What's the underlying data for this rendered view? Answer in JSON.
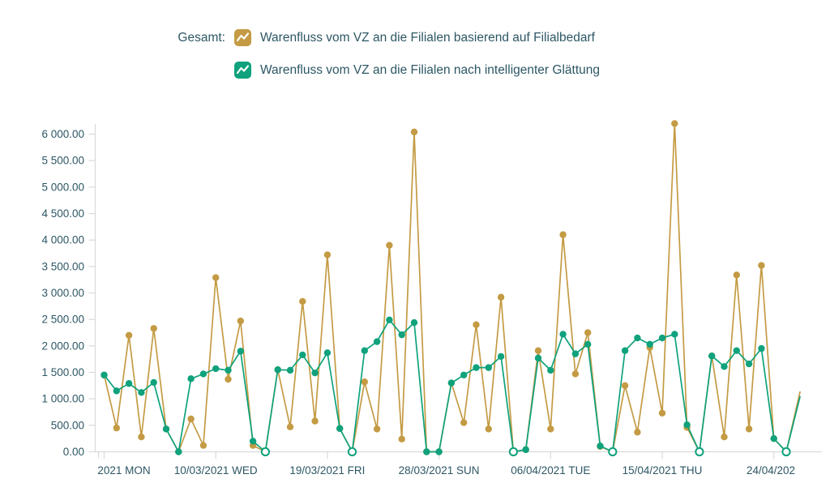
{
  "legend": {
    "prefix": "Gesamt:"
  },
  "chart_data": {
    "type": "line",
    "title": "",
    "xlabel": "",
    "ylabel": "",
    "ylim": [
      0,
      6000
    ],
    "grid": false,
    "legend_position": "top",
    "y_tick_labels": [
      "0.00",
      "500.00",
      "1 000.00",
      "1 500.00",
      "2 000.00",
      "2 500.00",
      "3 000.00",
      "3 500.00",
      "4 000.00",
      "4 500.00",
      "5 000.00",
      "5 500.00",
      "6 000.00"
    ],
    "x_tick_labels": [
      "2021 MON",
      "10/03/2021 WED",
      "19/03/2021 FRI",
      "28/03/2021 SUN",
      "06/04/2021 TUE",
      "15/04/2021 THU",
      "24/04/202"
    ],
    "x_tick_days": [
      0,
      9,
      18,
      27,
      36,
      45,
      54
    ],
    "x_unit": "day",
    "series": [
      {
        "name": "Warenfluss vom VZ an die Filialen basierend auf Filialbedarf",
        "color": "#C49B44",
        "values": [
          1450,
          450,
          2200,
          280,
          2330,
          430,
          0,
          620,
          120,
          3290,
          1370,
          2470,
          120,
          0,
          1550,
          470,
          2840,
          580,
          3720,
          440,
          0,
          1320,
          430,
          3900,
          240,
          6040,
          0,
          0,
          1300,
          550,
          2400,
          430,
          2920,
          0,
          40,
          1910,
          430,
          4100,
          1470,
          2250,
          100,
          0,
          1250,
          370,
          1970,
          730,
          6200,
          460,
          0,
          1810,
          280,
          3340,
          430,
          3520,
          250,
          0
        ]
      },
      {
        "name": "Warenfluss vom VZ an die Filialen nach intelligenter Glättung",
        "color": "#0FA27C",
        "values": [
          1450,
          1150,
          1290,
          1120,
          1310,
          430,
          0,
          1380,
          1470,
          1570,
          1540,
          1900,
          200,
          0,
          1550,
          1540,
          1830,
          1490,
          1870,
          440,
          0,
          1910,
          2080,
          2490,
          2210,
          2440,
          0,
          0,
          1300,
          1450,
          1590,
          1590,
          1800,
          0,
          40,
          1770,
          1540,
          2220,
          1850,
          2030,
          110,
          0,
          1910,
          2150,
          2030,
          2150,
          2220,
          510,
          0,
          1810,
          1610,
          1910,
          1660,
          1950,
          250,
          0
        ],
        "zero_open_indices": [
          13,
          20,
          33,
          41,
          48,
          55
        ]
      }
    ],
    "partial_next_point": {
      "gold": 1130,
      "green": 1040
    }
  }
}
